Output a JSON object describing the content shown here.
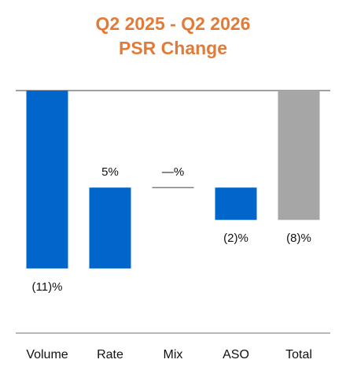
{
  "chart_data": {
    "type": "waterfall",
    "title": [
      "Q2 2025 - Q2 2026",
      "PSR Change"
    ],
    "categories": [
      "Volume",
      "Rate",
      "Mix",
      "ASO",
      "Total"
    ],
    "values": [
      -11,
      5,
      0,
      -2,
      -8
    ],
    "value_labels": [
      "(11)%",
      "5%",
      "—%",
      "(2)%",
      "(8)%"
    ],
    "colors": [
      "#0066cc",
      "#0066cc",
      "#0066cc",
      "#0066cc",
      "#a6a6a6"
    ],
    "ylim": [
      -15,
      0
    ]
  }
}
